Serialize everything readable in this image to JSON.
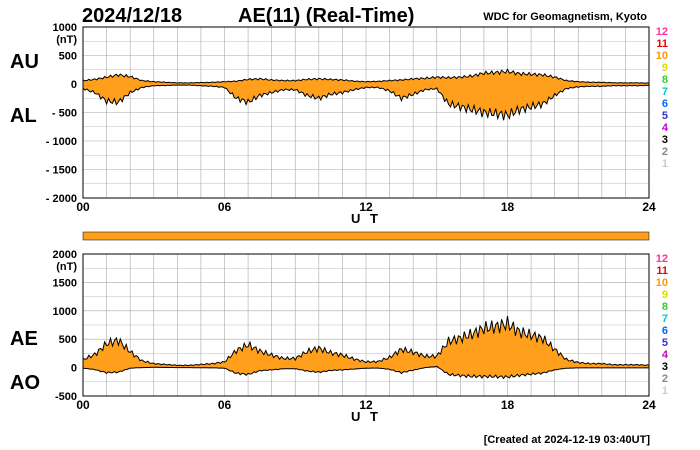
{
  "header": {
    "date": "2024/12/18",
    "title": "AE(11) (Real-Time)",
    "source": "WDC for Geomagnetism, Kyoto",
    "created": "[Created at 2024-12-19 03:40UT]"
  },
  "hour_scale": {
    "labels": [
      "1",
      "2",
      "3",
      "4",
      "5",
      "6",
      "7",
      "8",
      "9",
      "10",
      "11",
      "12"
    ],
    "colors": [
      "#cccccc",
      "#888888",
      "#000000",
      "#cc00cc",
      "#3333cc",
      "#0066ff",
      "#00cccc",
      "#33cc33",
      "#dddd00",
      "#ff9900",
      "#ee0000",
      "#ff3399"
    ]
  },
  "colors": {
    "fill": "#ff9f1c",
    "line": "#000000",
    "grid": "#aaaaaa",
    "bar": "#ff9f1c"
  },
  "chart_data": [
    {
      "type": "area",
      "xlabel": "U T",
      "unit": "(nT)",
      "upper_name": "AU",
      "lower_name": "AL",
      "xlim": [
        0,
        24
      ],
      "ylim": [
        -2000,
        1000
      ],
      "xticks": [
        "00",
        "06",
        "12",
        "18",
        "24"
      ],
      "yticks": [
        "1000",
        "500",
        "0",
        "- 500",
        "- 1000",
        "- 1500",
        "- 2000"
      ],
      "x": [
        0,
        0.5,
        1,
        1.5,
        2,
        2.5,
        3,
        3.5,
        4,
        4.5,
        5,
        5.5,
        6,
        6.5,
        7,
        7.5,
        8,
        8.5,
        9,
        9.5,
        10,
        10.5,
        11,
        11.5,
        12,
        12.5,
        13,
        13.5,
        14,
        14.5,
        15,
        15.5,
        16,
        16.5,
        17,
        17.5,
        18,
        18.5,
        19,
        19.5,
        20,
        20.5,
        21,
        21.5,
        22,
        22.5,
        23,
        23.5,
        24
      ],
      "series": [
        {
          "name": "AU",
          "values": [
            60,
            80,
            120,
            160,
            130,
            60,
            40,
            30,
            20,
            20,
            25,
            30,
            40,
            50,
            80,
            90,
            70,
            60,
            60,
            80,
            90,
            80,
            70,
            50,
            40,
            45,
            60,
            70,
            90,
            100,
            120,
            110,
            120,
            140,
            190,
            200,
            220,
            180,
            170,
            160,
            120,
            60,
            40,
            30,
            30,
            20,
            20,
            20,
            15
          ]
        },
        {
          "name": "AL",
          "values": [
            -80,
            -150,
            -300,
            -320,
            -150,
            -60,
            -30,
            -25,
            -20,
            -20,
            -30,
            -40,
            -60,
            -250,
            -320,
            -200,
            -150,
            -100,
            -100,
            -200,
            -250,
            -180,
            -150,
            -100,
            -60,
            -60,
            -120,
            -250,
            -180,
            -100,
            -80,
            -350,
            -400,
            -450,
            -500,
            -520,
            -550,
            -450,
            -400,
            -350,
            -200,
            -80,
            -50,
            -40,
            -40,
            -30,
            -30,
            -30,
            -25
          ]
        }
      ]
    },
    {
      "type": "area",
      "xlabel": "U T",
      "unit": "(nT)",
      "upper_name": "AE",
      "lower_name": "AO",
      "xlim": [
        0,
        24
      ],
      "ylim": [
        -500,
        2000
      ],
      "xticks": [
        "00",
        "06",
        "12",
        "18",
        "24"
      ],
      "yticks": [
        "2000",
        "1500",
        "1000",
        "500",
        "0",
        "-500"
      ],
      "x": [
        0,
        0.5,
        1,
        1.5,
        2,
        2.5,
        3,
        3.5,
        4,
        4.5,
        5,
        5.5,
        6,
        6.5,
        7,
        7.5,
        8,
        8.5,
        9,
        9.5,
        10,
        10.5,
        11,
        11.5,
        12,
        12.5,
        13,
        13.5,
        14,
        14.5,
        15,
        15.5,
        16,
        16.5,
        17,
        17.5,
        18,
        18.5,
        19,
        19.5,
        20,
        20.5,
        21,
        21.5,
        22,
        22.5,
        23,
        23.5,
        24
      ],
      "series": [
        {
          "name": "AE",
          "values": [
            140,
            230,
            420,
            480,
            280,
            120,
            70,
            55,
            40,
            40,
            55,
            70,
            100,
            300,
            400,
            290,
            220,
            160,
            160,
            280,
            340,
            260,
            220,
            150,
            100,
            105,
            180,
            320,
            270,
            200,
            200,
            460,
            520,
            590,
            690,
            720,
            770,
            630,
            570,
            510,
            320,
            140,
            90,
            70,
            70,
            50,
            50,
            50,
            40
          ]
        },
        {
          "name": "AO",
          "values": [
            -10,
            -35,
            -90,
            -80,
            -10,
            0,
            5,
            3,
            0,
            0,
            -3,
            -5,
            -10,
            -100,
            -120,
            -55,
            -40,
            -20,
            -20,
            -60,
            -80,
            -50,
            -40,
            -25,
            -10,
            -8,
            -30,
            -90,
            -45,
            0,
            20,
            -120,
            -140,
            -155,
            -155,
            -160,
            -165,
            -135,
            -115,
            -95,
            -40,
            -10,
            -5,
            -5,
            -5,
            -5,
            -5,
            -5,
            -5
          ]
        }
      ]
    }
  ]
}
